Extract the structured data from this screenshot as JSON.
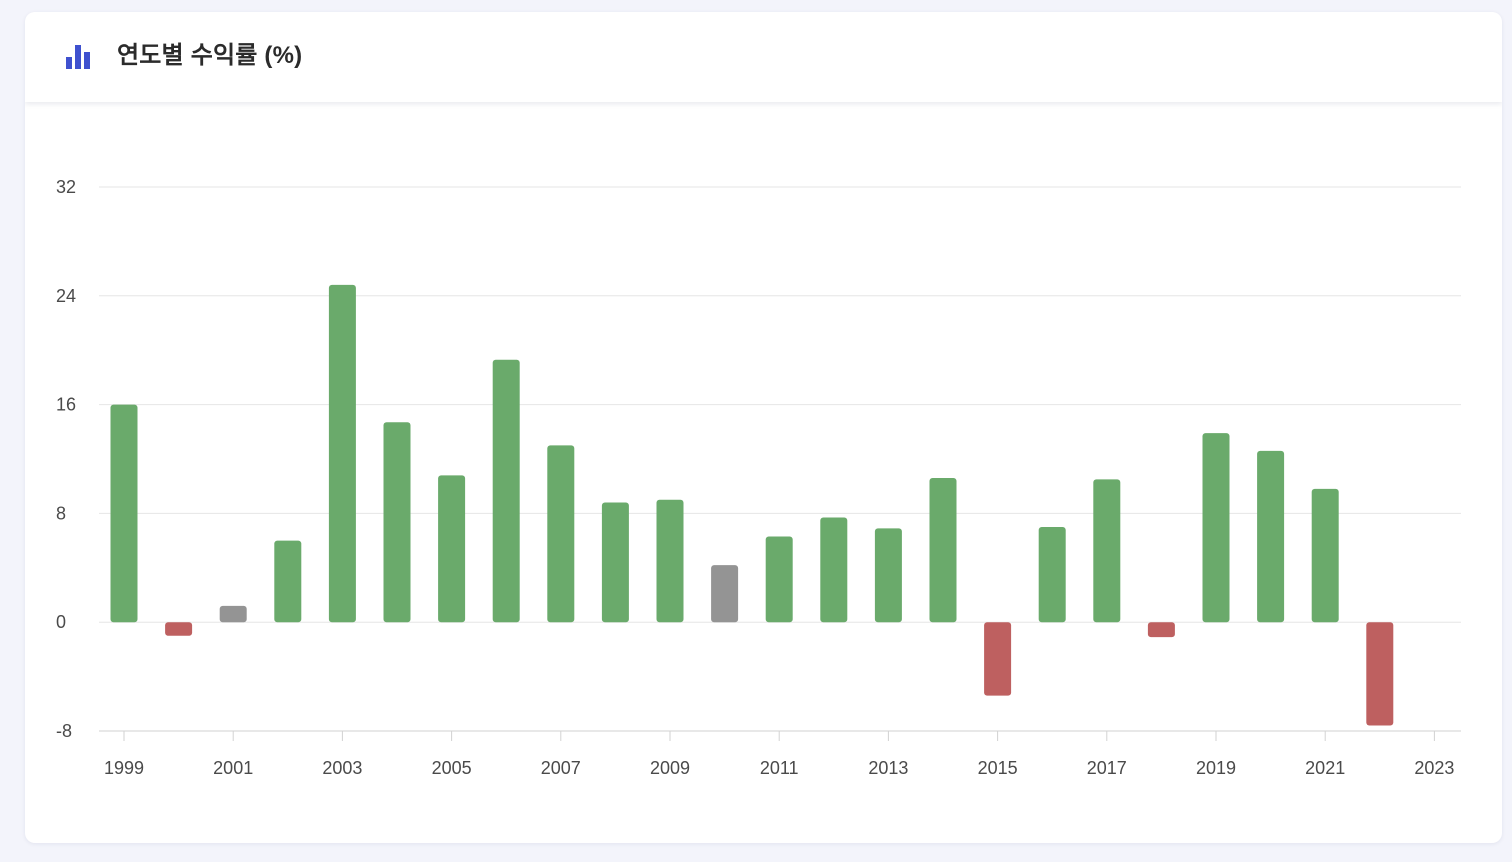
{
  "header": {
    "title": "연도별 수익률 (%)",
    "icon": "bar-chart-icon",
    "icon_color": "#3f51cf"
  },
  "colors": {
    "positive": "#6aaa6b",
    "negative": "#be6060",
    "neutral": "#949494",
    "grid": "#e6e6e6"
  },
  "chart_data": {
    "type": "bar",
    "title": "연도별 수익률 (%)",
    "xlabel": "",
    "ylabel": "",
    "ylim": [
      -8,
      32
    ],
    "yticks": [
      32,
      24,
      16,
      8,
      0,
      -8
    ],
    "xticks": [
      "1999",
      "2001",
      "2003",
      "2005",
      "2007",
      "2009",
      "2011",
      "2013",
      "2015",
      "2017",
      "2019",
      "2021",
      "2023"
    ],
    "grid": true,
    "legend": "none",
    "categories": [
      "1999",
      "2000",
      "2001",
      "2002",
      "2003",
      "2004",
      "2005",
      "2006",
      "2007",
      "2008",
      "2009",
      "2010",
      "2011",
      "2012",
      "2013",
      "2014",
      "2015",
      "2016",
      "2017",
      "2018",
      "2019",
      "2020",
      "2021",
      "2022",
      "2023"
    ],
    "values": [
      16.0,
      -1.0,
      1.2,
      6.0,
      24.8,
      14.7,
      10.8,
      19.3,
      13.0,
      8.8,
      9.0,
      4.2,
      6.3,
      7.7,
      6.9,
      10.6,
      -5.4,
      7.0,
      10.5,
      -1.1,
      13.9,
      12.6,
      9.8,
      -7.6,
      null
    ],
    "bar_status": [
      "positive",
      "negative",
      "neutral",
      "positive",
      "positive",
      "positive",
      "positive",
      "positive",
      "positive",
      "positive",
      "positive",
      "neutral",
      "positive",
      "positive",
      "positive",
      "positive",
      "negative",
      "positive",
      "positive",
      "negative",
      "positive",
      "positive",
      "positive",
      "negative",
      "none"
    ]
  }
}
